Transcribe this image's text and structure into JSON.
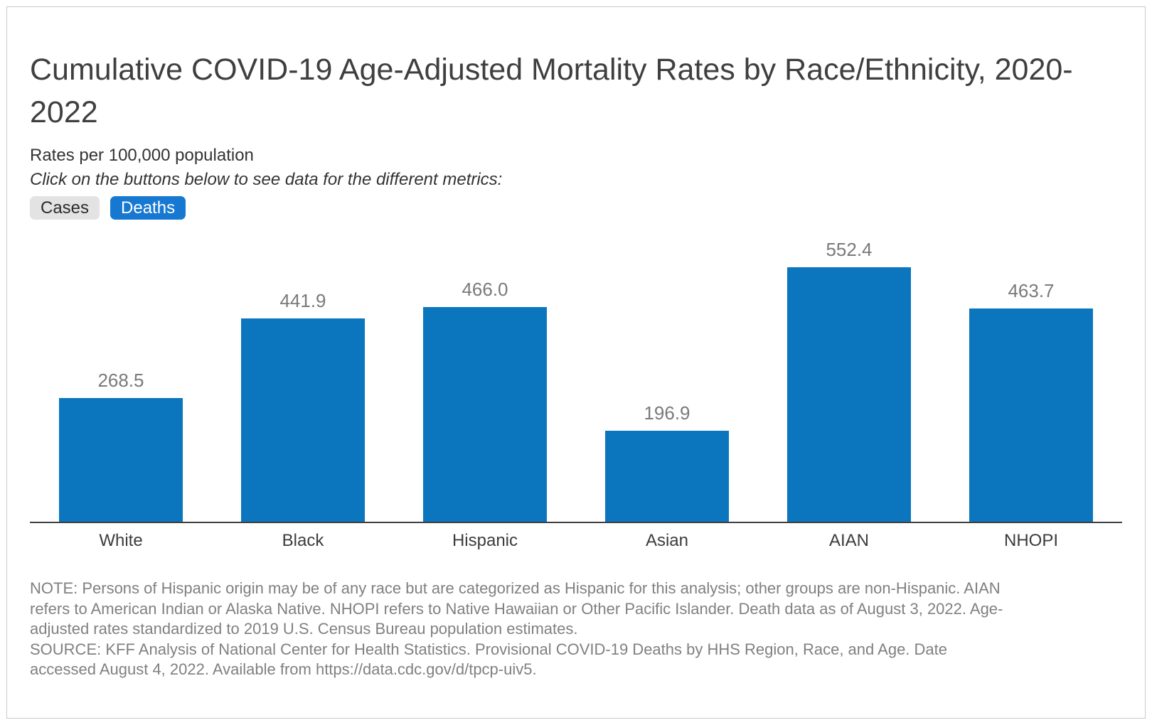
{
  "header": {
    "title": "Cumulative COVID-19 Age-Adjusted Mortality Rates by Race/Ethnicity, 2020-2022",
    "subtitle": "Rates per 100,000 population",
    "instruction": "Click on the buttons below to see data for the different metrics:"
  },
  "buttons": [
    {
      "label": "Cases",
      "active": false
    },
    {
      "label": "Deaths",
      "active": true
    }
  ],
  "colors": {
    "bar": "#0b76bd",
    "button_active_bg": "#1778d2",
    "button_active_text": "#ffffff",
    "button_inactive_bg": "#e3e3e3",
    "button_inactive_text": "#2b2b2b",
    "value_label": "#7a7a7a",
    "axis_line": "#3f3f3f",
    "footer_text": "#808080",
    "panel_border": "#c9c9c9"
  },
  "chart_data": {
    "type": "bar",
    "categories": [
      "White",
      "Black",
      "Hispanic",
      "Asian",
      "AIAN",
      "NHOPI"
    ],
    "values": [
      268.5,
      441.9,
      466.0,
      196.9,
      552.4,
      463.7
    ],
    "value_labels": [
      "268.5",
      "441.9",
      "466.0",
      "196.9",
      "552.4",
      "463.7"
    ],
    "series_name": "Deaths",
    "title": "Cumulative COVID-19 Age-Adjusted Mortality Rates by Race/Ethnicity, 2020-2022",
    "ylabel": "Rates per 100,000 population",
    "ylim": [
      0,
      600
    ],
    "grid": false,
    "legend": false,
    "value_labels_shown": true,
    "bar_color": "#0b76bd"
  },
  "footer": {
    "note": "NOTE: Persons of Hispanic origin may be of any race but are categorized as Hispanic for this analysis; other groups are non-Hispanic. AIAN refers to American Indian or Alaska Native. NHOPI refers to Native Hawaiian or Other Pacific Islander. Death data as of August 3, 2022. Age-adjusted rates standardized to 2019 U.S. Census Bureau population estimates.",
    "source": "SOURCE: KFF Analysis of National Center for Health Statistics. Provisional COVID-19 Deaths by HHS Region, Race, and Age. Date accessed August 4, 2022. Available from https://data.cdc.gov/d/tpcp-uiv5."
  }
}
